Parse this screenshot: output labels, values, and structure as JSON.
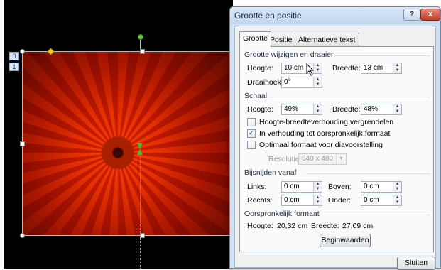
{
  "slide": {
    "markers": [
      "0",
      "1"
    ]
  },
  "dialog": {
    "title": "Grootte en positie",
    "help_label": "?",
    "close_label": "x",
    "tabs": [
      {
        "label": "Grootte"
      },
      {
        "label": "Positie"
      },
      {
        "label": "Alternatieve tekst"
      }
    ],
    "size_rotate": {
      "heading": "Grootte wijzigen en draaien",
      "height_label": "Hoogte:",
      "height_value": "10 cm",
      "width_label": "Breedte:",
      "width_value": "13 cm",
      "rotation_label": "Draaihoek:",
      "rotation_value": "0°"
    },
    "scale": {
      "heading": "Schaal",
      "height_label": "Hoogte:",
      "height_value": "49%",
      "width_label": "Breedte:",
      "width_value": "48%",
      "lock_aspect": {
        "label": "Hoogte-breedteverhouding vergrendelen",
        "checked": false
      },
      "relative_original": {
        "label": "In verhouding tot oorspronkelijk formaat",
        "checked": true
      },
      "best_scale": {
        "label": "Optimaal formaat voor diavoorstelling",
        "checked": false
      },
      "resolution_label": "Resolutie",
      "resolution_value": "640 x 480"
    },
    "crop": {
      "heading": "Bijsnijden vanaf",
      "left_label": "Links:",
      "left_value": "0 cm",
      "top_label": "Boven:",
      "top_value": "0 cm",
      "right_label": "Rechts:",
      "right_value": "0 cm",
      "bottom_label": "Onder:",
      "bottom_value": "0 cm"
    },
    "original": {
      "heading": "Oorspronkelijk formaat",
      "height_label": "Hoogte:",
      "height_value": "20,32 cm",
      "width_label": "Breedte:",
      "width_value": "27,09 cm",
      "reset_label": "Beginwaarden"
    },
    "close_button_label": "Sluiten"
  }
}
